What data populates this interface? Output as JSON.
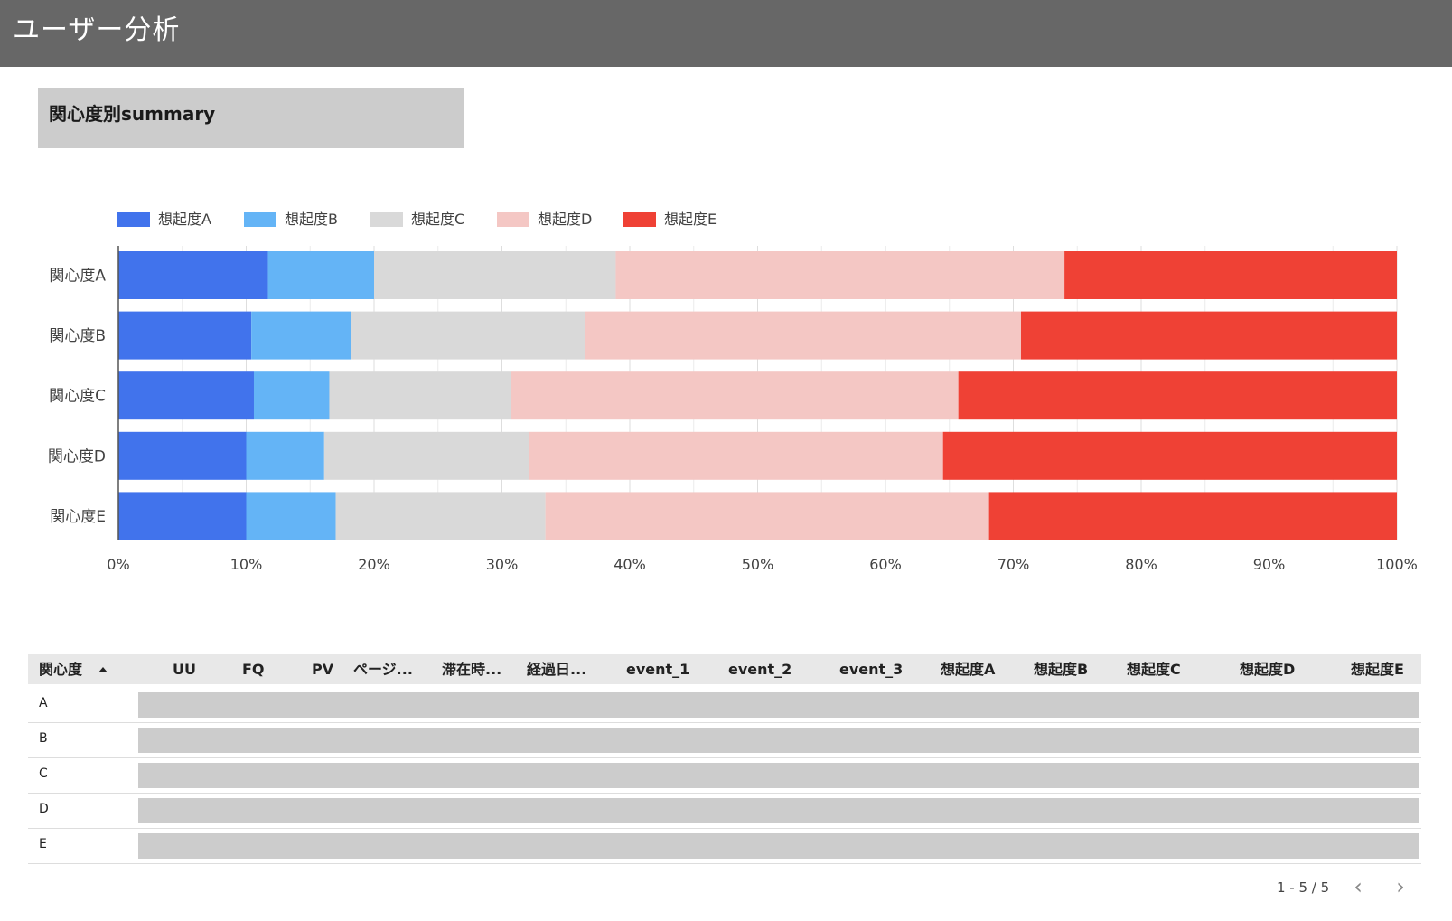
{
  "header": {
    "title": "ユーザー分析"
  },
  "section": {
    "title": "関心度別summary"
  },
  "colors": {
    "header_bg": "#676767",
    "series": [
      "#4173ec",
      "#64b4f6",
      "#d9d9d9",
      "#f4c7c4",
      "#ef4135"
    ]
  },
  "chart_data": {
    "type": "bar",
    "orientation": "horizontal",
    "stacked": "percent",
    "categories": [
      "関心度A",
      "関心度B",
      "関心度C",
      "関心度D",
      "関心度E"
    ],
    "series": [
      {
        "name": "想起度A",
        "values": [
          11.7,
          10.4,
          10.6,
          10.0,
          10.0
        ]
      },
      {
        "name": "想起度B",
        "values": [
          8.3,
          7.8,
          5.9,
          6.1,
          7.0
        ]
      },
      {
        "name": "想起度C",
        "values": [
          18.9,
          18.3,
          14.2,
          16.0,
          16.4
        ]
      },
      {
        "name": "想起度D",
        "values": [
          35.1,
          34.1,
          35.0,
          32.4,
          34.7
        ]
      },
      {
        "name": "想起度E",
        "values": [
          26.0,
          29.4,
          34.3,
          35.5,
          31.9
        ]
      }
    ],
    "xlim": [
      0,
      100
    ],
    "xticks": [
      "0%",
      "10%",
      "20%",
      "30%",
      "40%",
      "50%",
      "60%",
      "70%",
      "80%",
      "90%",
      "100%"
    ],
    "legend": "top-left",
    "grid": true
  },
  "table": {
    "columns": [
      "関心度",
      "UU",
      "FQ",
      "PV",
      "ページ...",
      "滞在時...",
      "経過日...",
      "event_1",
      "event_2",
      "event_3",
      "想起度A",
      "想起度B",
      "想起度C",
      "想起度D",
      "想起度E"
    ],
    "sort": "ascending",
    "rows": [
      "A",
      "B",
      "C",
      "D",
      "E"
    ],
    "pager": {
      "range": "1 - 5 / 5",
      "prev": "‹",
      "next": "›"
    }
  }
}
